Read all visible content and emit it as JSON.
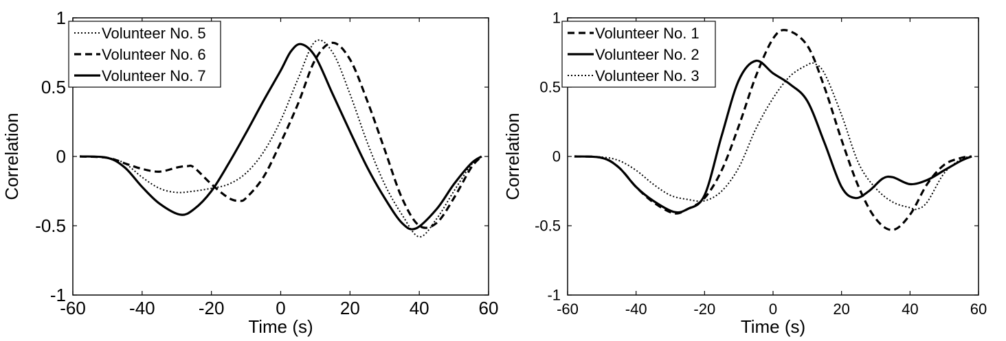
{
  "chart_data": [
    {
      "type": "line",
      "xlabel": "Time (s)",
      "ylabel": "Correlation",
      "xlim": [
        -60,
        60
      ],
      "ylim": [
        -1,
        1
      ],
      "xticks": [
        -60,
        -40,
        -20,
        0,
        20,
        40,
        60
      ],
      "yticks": [
        -1,
        -0.5,
        0,
        0.5,
        1
      ],
      "xtick_labels": [
        "-60",
        "-40",
        "-20",
        "0",
        "20",
        "40",
        "60"
      ],
      "ytick_labels": [
        "-1",
        "-0.5",
        "0",
        "0.5",
        "1"
      ],
      "grid": false,
      "legend_position": "top-left",
      "series": [
        {
          "name": "Volunteer No. 5",
          "style": "dotted",
          "color": "#000000",
          "x": [
            -58,
            -50,
            -45,
            -40,
            -35,
            -30,
            -25,
            -20,
            -15,
            -10,
            -5,
            0,
            5,
            10,
            15,
            20,
            25,
            30,
            35,
            40,
            45,
            50,
            55,
            58
          ],
          "y": [
            0,
            -0.01,
            -0.05,
            -0.15,
            -0.23,
            -0.26,
            -0.25,
            -0.23,
            -0.2,
            -0.12,
            0.03,
            0.26,
            0.56,
            0.83,
            0.75,
            0.45,
            0.1,
            -0.2,
            -0.42,
            -0.58,
            -0.45,
            -0.25,
            -0.06,
            0
          ]
        },
        {
          "name": "Volunteer No. 6",
          "style": "dashed",
          "color": "#000000",
          "x": [
            -58,
            -50,
            -45,
            -40,
            -35,
            -30,
            -27,
            -25,
            -20,
            -15,
            -12,
            -10,
            -5,
            0,
            5,
            10,
            15,
            20,
            25,
            30,
            35,
            40,
            45,
            50,
            55,
            58
          ],
          "y": [
            0,
            -0.01,
            -0.05,
            -0.09,
            -0.11,
            -0.08,
            -0.07,
            -0.08,
            -0.2,
            -0.3,
            -0.32,
            -0.3,
            -0.15,
            0.1,
            0.38,
            0.7,
            0.82,
            0.7,
            0.4,
            0.05,
            -0.3,
            -0.5,
            -0.48,
            -0.3,
            -0.08,
            0
          ]
        },
        {
          "name": "Volunteer No. 7",
          "style": "solid",
          "color": "#000000",
          "x": [
            -58,
            -50,
            -45,
            -40,
            -35,
            -29,
            -25,
            -20,
            -15,
            -10,
            -5,
            0,
            3,
            6,
            10,
            15,
            20,
            25,
            30,
            35,
            39,
            45,
            50,
            55,
            58
          ],
          "y": [
            0,
            -0.01,
            -0.08,
            -0.22,
            -0.34,
            -0.42,
            -0.38,
            -0.25,
            -0.05,
            0.17,
            0.4,
            0.62,
            0.76,
            0.81,
            0.72,
            0.45,
            0.18,
            -0.08,
            -0.3,
            -0.48,
            -0.52,
            -0.38,
            -0.2,
            -0.05,
            0
          ]
        }
      ]
    },
    {
      "type": "line",
      "xlabel": "Time (s)",
      "ylabel": "Correlation",
      "xlim": [
        -60,
        60
      ],
      "ylim": [
        -1,
        1
      ],
      "xticks": [
        -60,
        -40,
        -20,
        0,
        20,
        40,
        60
      ],
      "yticks": [
        -1,
        -0.5,
        0,
        0.5,
        1
      ],
      "xtick_labels": [
        "-60",
        "-40",
        "-20",
        "0",
        "20",
        "40",
        "60"
      ],
      "ytick_labels": [
        "-1",
        "-0.5",
        "0",
        "0.5",
        "1"
      ],
      "grid": false,
      "legend_position": "top-left",
      "series": [
        {
          "name": "Volunteer No. 1",
          "style": "dashed",
          "color": "#000000",
          "x": [
            -58,
            -50,
            -45,
            -40,
            -35,
            -29,
            -25,
            -20,
            -15,
            -10,
            -5,
            0,
            4,
            10,
            15,
            20,
            25,
            30,
            35,
            40,
            45,
            50,
            55,
            58
          ],
          "y": [
            0,
            -0.01,
            -0.08,
            -0.22,
            -0.33,
            -0.41,
            -0.38,
            -0.3,
            -0.1,
            0.22,
            0.58,
            0.85,
            0.91,
            0.8,
            0.5,
            0.12,
            -0.22,
            -0.45,
            -0.53,
            -0.42,
            -0.2,
            -0.06,
            -0.01,
            0
          ]
        },
        {
          "name": "Volunteer No. 2",
          "style": "solid",
          "color": "#000000",
          "x": [
            -58,
            -50,
            -45,
            -40,
            -35,
            -29,
            -25,
            -20,
            -15,
            -10,
            -5,
            0,
            5,
            10,
            15,
            20,
            24,
            28,
            32,
            35,
            40,
            45,
            50,
            55,
            58
          ],
          "y": [
            0,
            -0.01,
            -0.08,
            -0.22,
            -0.32,
            -0.4,
            -0.38,
            -0.28,
            0.15,
            0.55,
            0.69,
            0.6,
            0.52,
            0.4,
            0.1,
            -0.22,
            -0.3,
            -0.25,
            -0.16,
            -0.15,
            -0.2,
            -0.17,
            -0.1,
            -0.03,
            0
          ]
        },
        {
          "name": "Volunteer No. 3",
          "style": "dotted",
          "color": "#000000",
          "x": [
            -58,
            -50,
            -45,
            -40,
            -35,
            -30,
            -25,
            -20,
            -15,
            -10,
            -5,
            0,
            5,
            10,
            12,
            15,
            20,
            25,
            30,
            35,
            40,
            42,
            45,
            50,
            55,
            58
          ],
          "y": [
            0,
            -0.005,
            -0.03,
            -0.1,
            -0.2,
            -0.28,
            -0.31,
            -0.32,
            -0.25,
            -0.08,
            0.2,
            0.42,
            0.58,
            0.66,
            0.67,
            0.6,
            0.3,
            -0.05,
            -0.23,
            -0.33,
            -0.37,
            -0.38,
            -0.33,
            -0.12,
            -0.02,
            0
          ]
        }
      ]
    }
  ]
}
